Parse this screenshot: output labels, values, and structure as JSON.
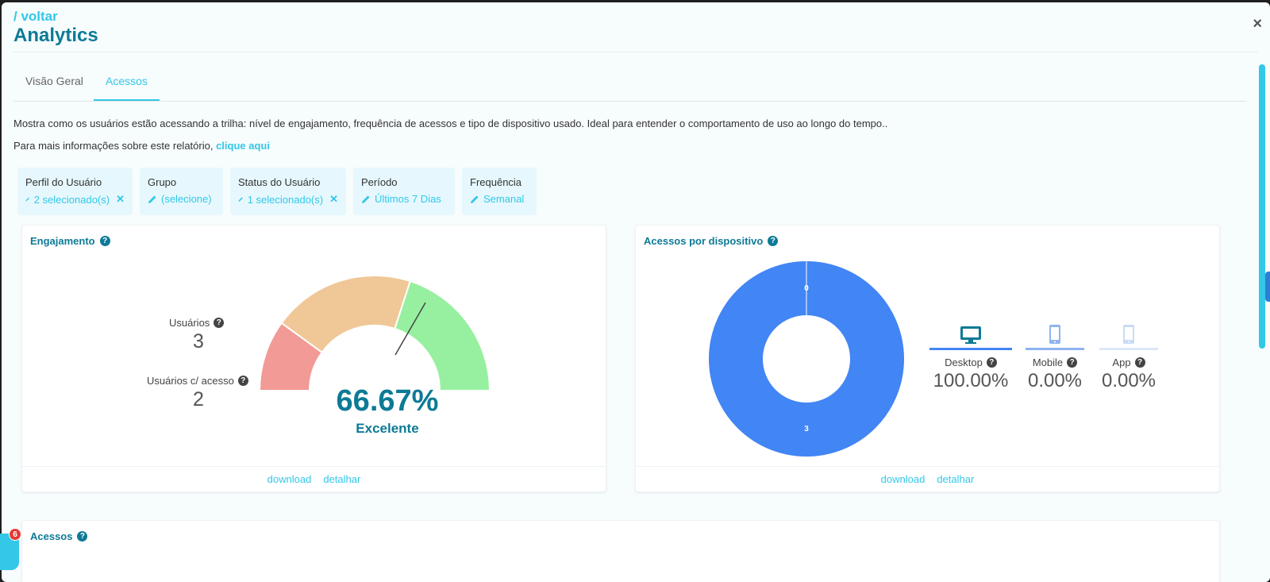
{
  "header": {
    "back_label": "/ voltar",
    "title": "Analytics",
    "close_label": "×"
  },
  "tabs": [
    {
      "label": "Visão Geral"
    },
    {
      "label": "Acessos"
    }
  ],
  "description": "Mostra como os usuários estão acessando a trilha: nível de engajamento, frequência de acessos e tipo de dispositivo usado. Ideal para entender o comportamento de uso ao longo do tempo..",
  "more_info": {
    "text": "Para mais informações sobre este relatório,",
    "link": "clique aqui"
  },
  "filters": [
    {
      "label": "Perfil do Usuário",
      "value": "2 selecionado(s)",
      "clear": "✕"
    },
    {
      "label": "Grupo",
      "value": "(selecione)"
    },
    {
      "label": "Status do Usuário",
      "value": "1 selecionado(s)",
      "clear": "✕"
    },
    {
      "label": "Período",
      "value": "Últimos 7 Dias"
    },
    {
      "label": "Frequência",
      "value": "Semanal"
    }
  ],
  "engagement": {
    "title": "Engajamento",
    "users_label": "Usuários",
    "users_value": "3",
    "access_label": "Usuários c/ acesso",
    "access_value": "2",
    "gauge_percent": "66.67%",
    "gauge_value": 66.67,
    "gauge_status": "Excelente",
    "gauge_colors": {
      "low": "#f19a96",
      "mid": "#f0c796",
      "high": "#97f0a0"
    },
    "footer": {
      "download": "download",
      "detail": "detalhar"
    }
  },
  "devices": {
    "title": "Acessos por dispositivo",
    "donut_labels": {
      "top": "0",
      "bottom": "3"
    },
    "donut_color": "#4285f4",
    "items": [
      {
        "label": "Desktop",
        "percent": "100.00%",
        "icon": "desktop-icon"
      },
      {
        "label": "Mobile",
        "percent": "0.00%",
        "icon": "mobile-icon"
      },
      {
        "label": "App",
        "percent": "0.00%",
        "icon": "app-icon"
      }
    ],
    "footer": {
      "download": "download",
      "detail": "detalhar"
    }
  },
  "accesses": {
    "title": "Acessos"
  },
  "chat": {
    "badge": "6"
  },
  "colors": {
    "accent": "#33c7e8",
    "title": "#0d7a96"
  }
}
